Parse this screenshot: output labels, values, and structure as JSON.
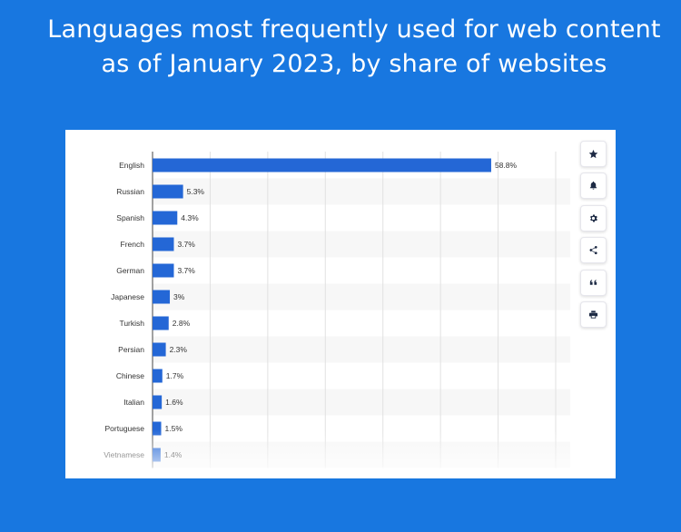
{
  "headline": "Languages most frequently used for web content as of January 2023, by share of websites",
  "colors": {
    "background": "#1877e0",
    "bar": "#2467d6",
    "grid": "#e1e1e1",
    "band": "#f7f7f7"
  },
  "toolbar": {
    "icons": [
      "star-icon",
      "bell-icon",
      "gear-icon",
      "share-icon",
      "quote-icon",
      "print-icon"
    ]
  },
  "chart_data": {
    "type": "bar",
    "orientation": "horizontal",
    "categories": [
      "English",
      "Russian",
      "Spanish",
      "French",
      "German",
      "Japanese",
      "Turkish",
      "Persian",
      "Chinese",
      "Italian",
      "Portuguese",
      "Vietnamese"
    ],
    "values": [
      58.8,
      5.3,
      4.3,
      3.7,
      3.7,
      3,
      2.8,
      2.3,
      1.7,
      1.6,
      1.5,
      1.4
    ],
    "value_labels": [
      "58.8%",
      "5.3%",
      "4.3%",
      "3.7%",
      "3.7%",
      "3%",
      "2.8%",
      "2.3%",
      "1.7%",
      "1.6%",
      "1.5%",
      "1.4%"
    ],
    "title": "",
    "xlabel": "",
    "ylabel": "",
    "xlim": [
      0,
      70
    ],
    "grid": true
  }
}
